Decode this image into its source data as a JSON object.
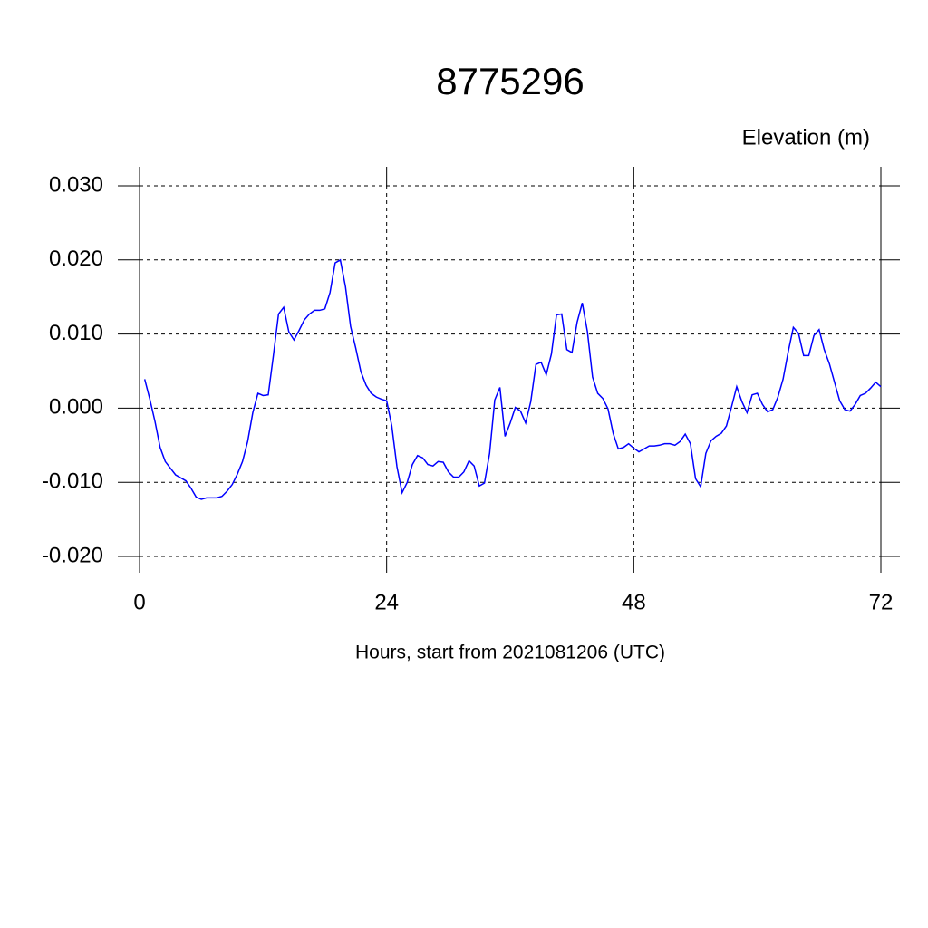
{
  "chart_data": {
    "type": "line",
    "title": "8775296",
    "subtitle": "Elevation (m)",
    "xlabel": "Hours, start from 2021081206 (UTC)",
    "x": [
      0.5,
      1,
      1.5,
      2,
      2.5,
      3,
      3.5,
      4,
      4.5,
      5,
      5.5,
      6,
      6.5,
      7,
      7.5,
      8,
      8.5,
      9,
      9.5,
      10,
      10.5,
      11,
      11.5,
      12,
      12.5,
      13,
      13.5,
      14,
      14.5,
      15,
      15.5,
      16,
      16.5,
      17,
      17.5,
      18,
      18.5,
      19,
      19.5,
      20,
      20.5,
      21,
      21.5,
      22,
      22.5,
      23,
      23.5,
      24,
      24.5,
      25,
      25.5,
      26,
      26.5,
      27,
      27.5,
      28,
      28.5,
      29,
      29.5,
      30,
      30.5,
      31,
      31.5,
      32,
      32.5,
      33,
      33.5,
      34,
      34.5,
      35,
      35.5,
      36,
      36.5,
      37,
      37.5,
      38,
      38.5,
      39,
      39.5,
      40,
      40.5,
      41,
      41.5,
      42,
      42.5,
      43,
      43.5,
      44,
      44.5,
      45,
      45.5,
      46,
      46.5,
      47,
      47.5,
      48,
      48.5,
      49,
      49.5,
      50,
      50.5,
      51,
      51.5,
      52,
      52.5,
      53,
      53.5,
      54,
      54.5,
      55,
      55.5,
      56,
      56.5,
      57,
      57.5,
      58,
      58.5,
      59,
      59.5,
      60,
      60.5,
      61,
      61.5,
      62,
      62.5,
      63,
      63.5,
      64,
      64.5,
      65,
      65.5,
      66,
      66.5,
      67,
      67.5,
      68,
      68.5,
      69,
      69.5,
      70,
      70.5,
      71,
      71.5,
      72
    ],
    "series": [
      {
        "color": "#0000ff",
        "values": [
          0.0039,
          0.0012,
          -0.0018,
          -0.0053,
          -0.0072,
          -0.0081,
          -0.009,
          -0.0094,
          -0.0098,
          -0.0108,
          -0.012,
          -0.0123,
          -0.0121,
          -0.0121,
          -0.0121,
          -0.0119,
          -0.0112,
          -0.0103,
          -0.0089,
          -0.0072,
          -0.0045,
          -0.0006,
          0.002,
          0.0017,
          0.0018,
          0.0071,
          0.0127,
          0.0136,
          0.0103,
          0.0092,
          0.0105,
          0.0119,
          0.0127,
          0.0132,
          0.0132,
          0.0134,
          0.0156,
          0.0196,
          0.02,
          0.0164,
          0.011,
          0.0081,
          0.0049,
          0.0031,
          0.002,
          0.0015,
          0.0012,
          0.001,
          -0.0024,
          -0.0079,
          -0.0114,
          -0.01,
          -0.0076,
          -0.0064,
          -0.0067,
          -0.0076,
          -0.0078,
          -0.0072,
          -0.0073,
          -0.0086,
          -0.0093,
          -0.0093,
          -0.0086,
          -0.0071,
          -0.0078,
          -0.0105,
          -0.0101,
          -0.0061,
          0.0011,
          0.0028,
          -0.0038,
          -0.002,
          0.0001,
          -0.0004,
          -0.002,
          0.0009,
          0.0059,
          0.0062,
          0.0045,
          0.0073,
          0.0126,
          0.0127,
          0.0079,
          0.0075,
          0.0116,
          0.0142,
          0.0103,
          0.0042,
          0.002,
          0.0013,
          -0.0001,
          -0.0034,
          -0.0055,
          -0.0053,
          -0.0048,
          -0.0054,
          -0.0059,
          -0.0055,
          -0.0051,
          -0.0051,
          -0.005,
          -0.0048,
          -0.0048,
          -0.005,
          -0.0045,
          -0.0035,
          -0.0048,
          -0.0095,
          -0.0106,
          -0.0061,
          -0.0044,
          -0.0038,
          -0.0034,
          -0.0024,
          0.0002,
          0.0029,
          0.0009,
          -0.0006,
          0.0018,
          0.002,
          0.0005,
          -0.0005,
          -0.0002,
          0.0015,
          0.0039,
          0.0076,
          0.0109,
          0.0101,
          0.0071,
          0.0071,
          0.0098,
          0.0106,
          0.0079,
          0.006,
          0.0035,
          0.001,
          -0.0002,
          -0.0004,
          0.0005,
          0.0017,
          0.002,
          0.0027,
          0.0035,
          0.0029
        ]
      }
    ],
    "xlim": [
      0,
      72
    ],
    "xticks": [
      0,
      24,
      48,
      72
    ],
    "ylim": [
      -0.02,
      0.03
    ],
    "yticks": [
      {
        "value": -0.02,
        "label": "-0.020"
      },
      {
        "value": -0.01,
        "label": "-0.010"
      },
      {
        "value": 0,
        "label": "0.000"
      },
      {
        "value": 0.01,
        "label": "0.010"
      },
      {
        "value": 0.02,
        "label": "0.020"
      },
      {
        "value": 0.03,
        "label": "0.030"
      }
    ],
    "grid": true
  }
}
